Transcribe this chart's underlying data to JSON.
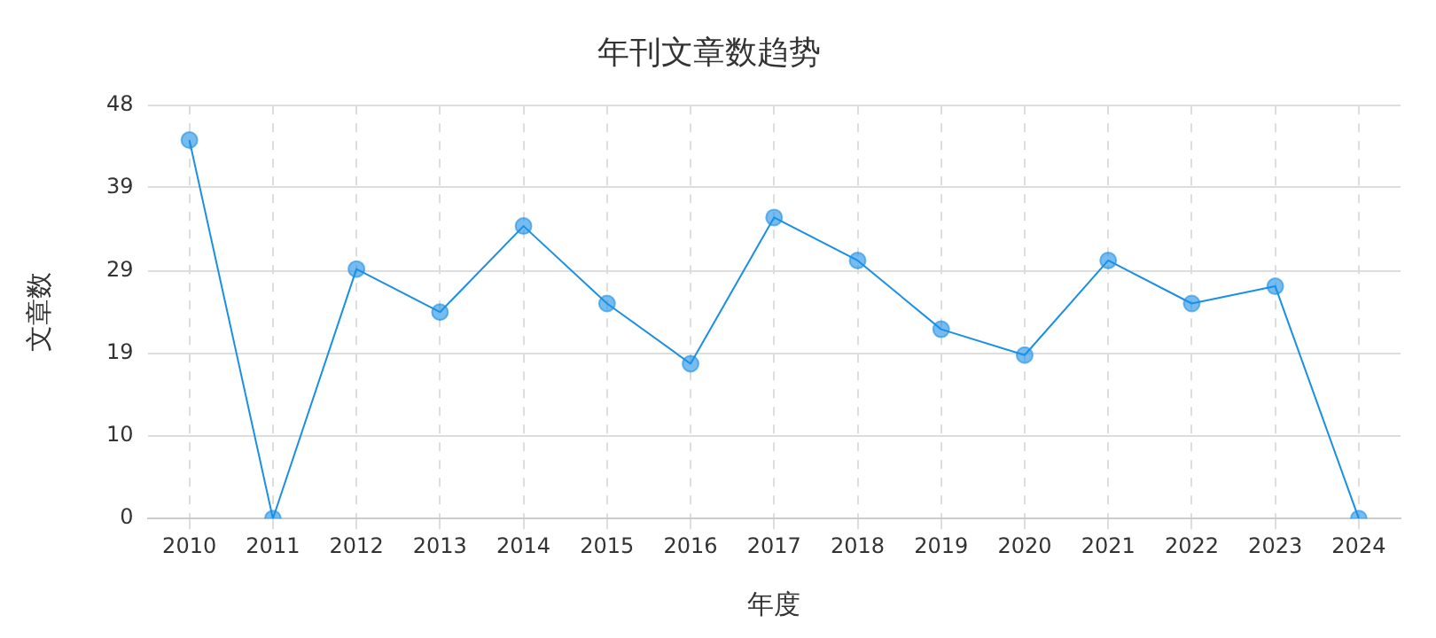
{
  "chart_data": {
    "type": "line",
    "title": "年刊文章数趋势",
    "xlabel": "年度",
    "ylabel": "文章数",
    "categories": [
      "2010",
      "2011",
      "2012",
      "2013",
      "2014",
      "2015",
      "2016",
      "2017",
      "2018",
      "2019",
      "2020",
      "2021",
      "2022",
      "2023",
      "2024"
    ],
    "series": [
      {
        "color": "#1a8fe6",
        "values": [
          44,
          0,
          29,
          24,
          34,
          25,
          18,
          35,
          30,
          22,
          19,
          30,
          25,
          27,
          0
        ]
      }
    ],
    "ylim": [
      0,
      48
    ],
    "yticks": [
      0,
      {
        "value": 9.6,
        "label": "10"
      },
      {
        "value": 19.2,
        "label": "19"
      },
      {
        "value": 28.8,
        "label": "29"
      },
      {
        "value": 38.5,
        "label": "39"
      },
      48
    ],
    "grid": true,
    "legend": false,
    "marker": "circle",
    "line_style": "solid"
  }
}
